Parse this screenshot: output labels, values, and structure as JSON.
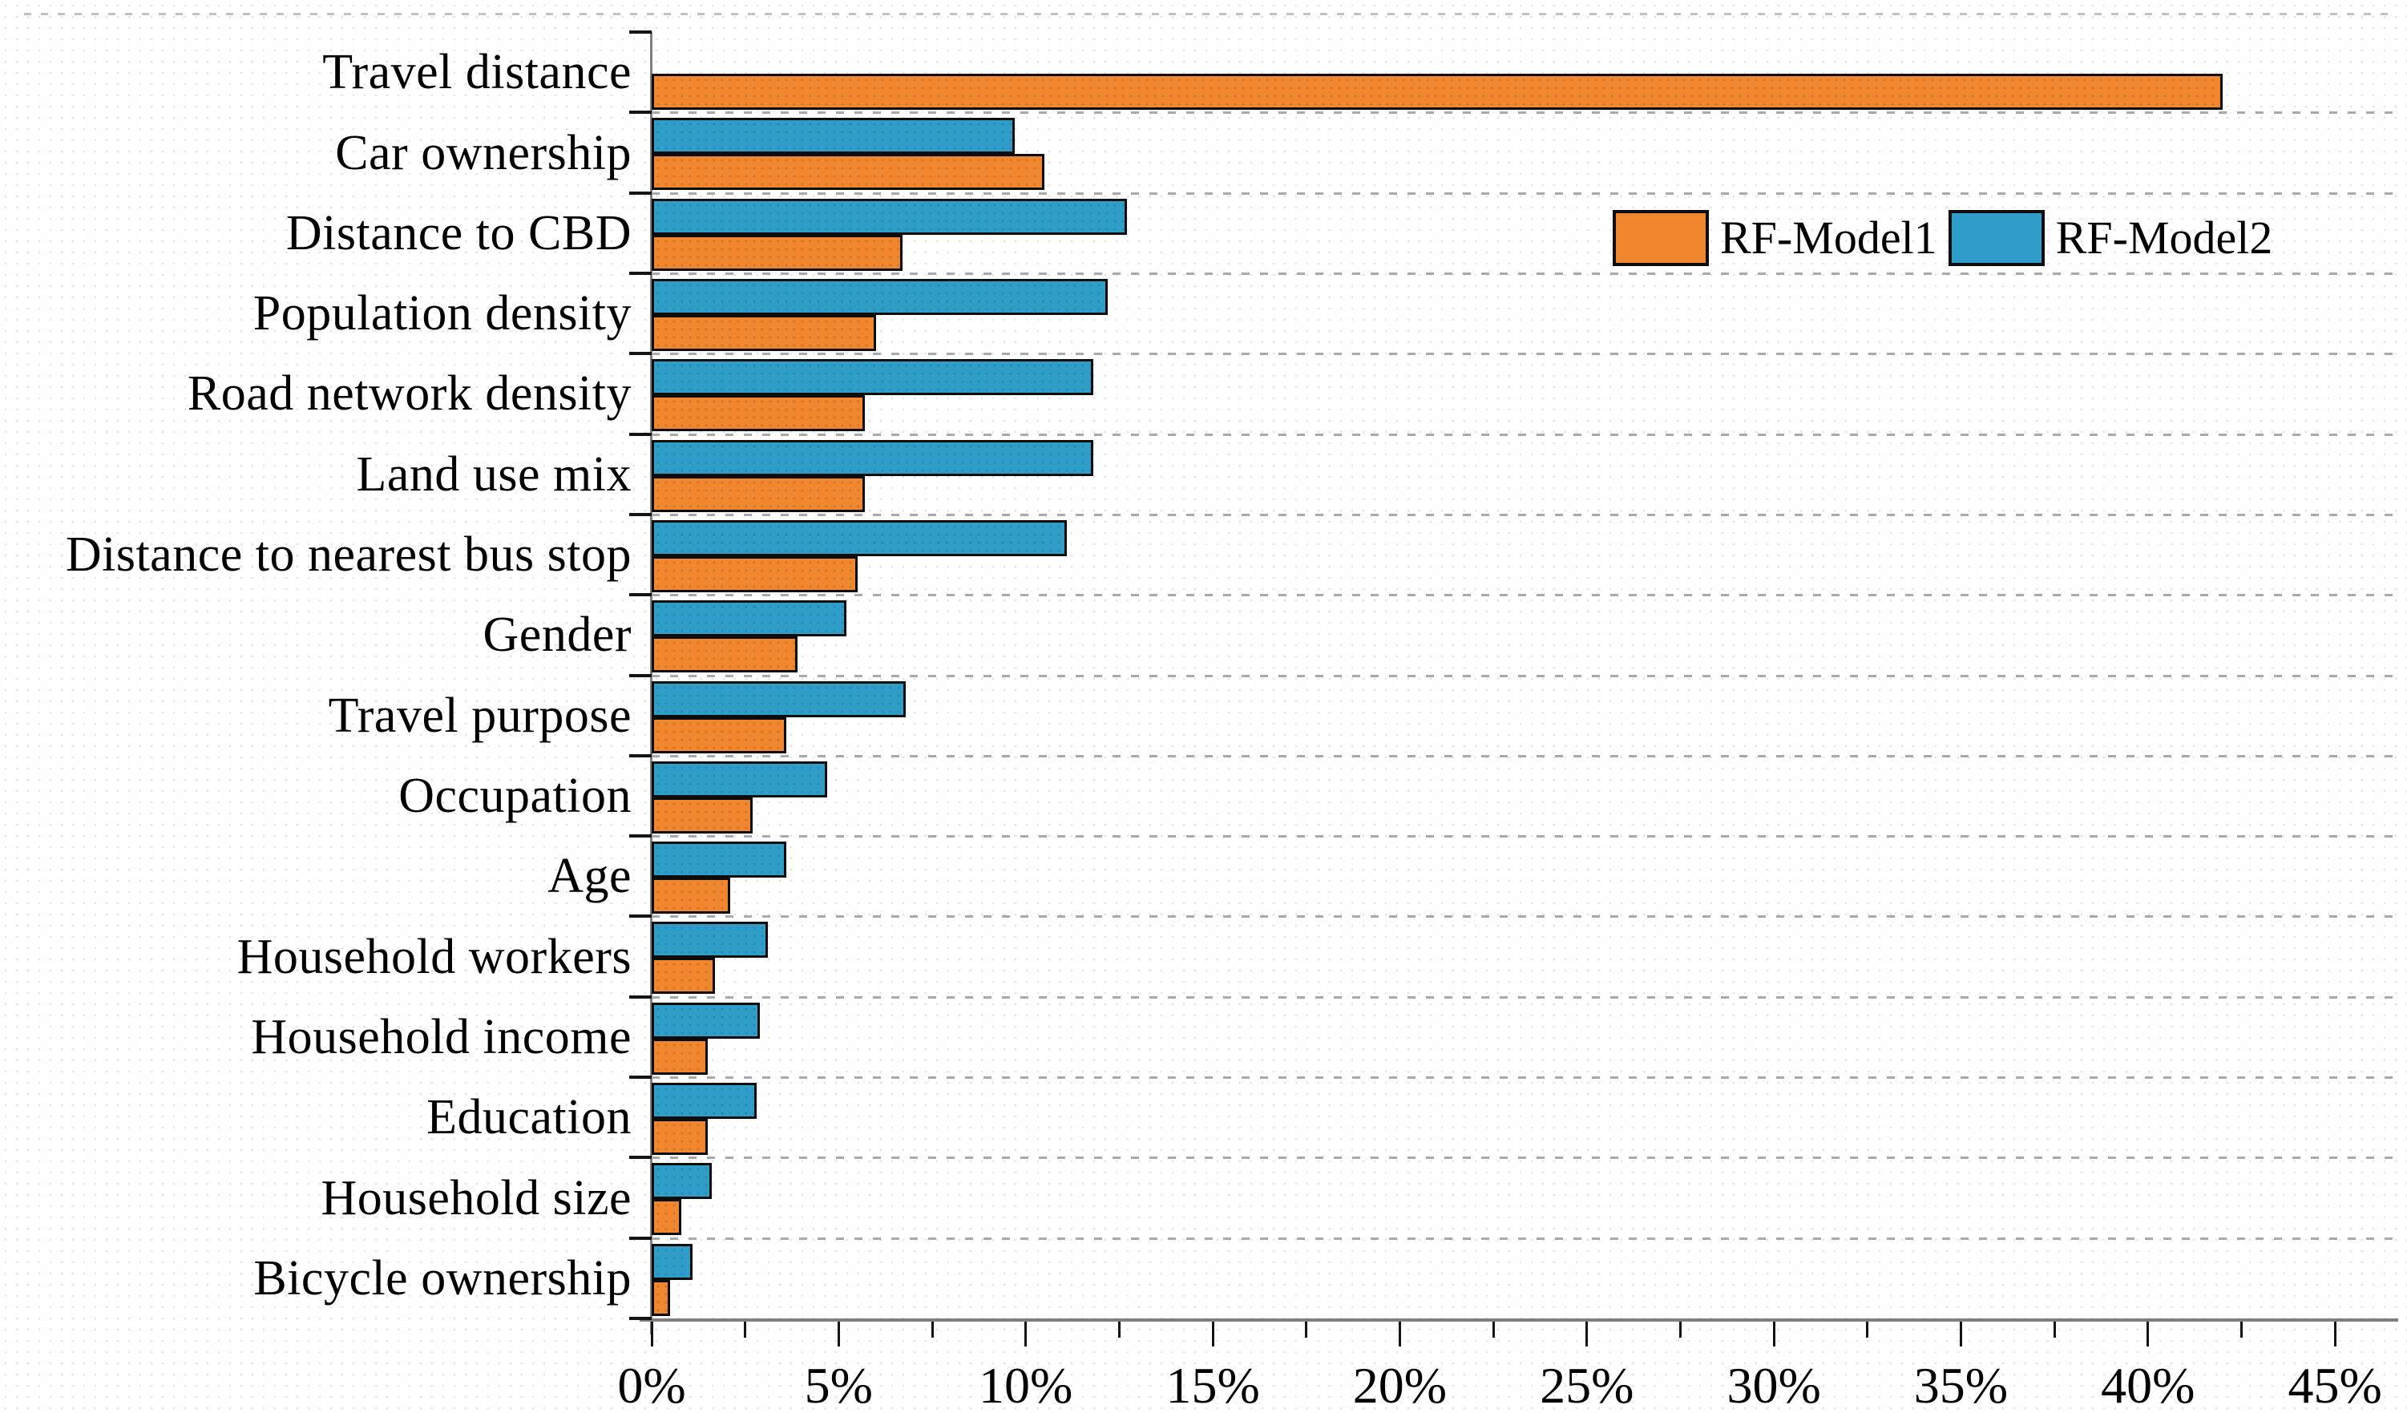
{
  "figure": {
    "background_color": "#ffffff",
    "axis_color": "#7f7f7f",
    "tick_color": "#141414",
    "gridline_color": "#a9a9a9",
    "text_color": "#000000"
  },
  "legend": {
    "position": "upper-right",
    "items": [
      {
        "label": "RF-Model1",
        "color": "#F0862E"
      },
      {
        "label": "RF-Model2",
        "color": "#2E9EC9"
      }
    ]
  },
  "chart_data": {
    "type": "bar",
    "orientation": "horizontal",
    "title": "",
    "xlabel": "",
    "ylabel": "",
    "unit": "%",
    "xlim": [
      0,
      46.5
    ],
    "x_tick_step": 5,
    "x_minor_tick_step": 2.5,
    "x_tick_labels": [
      "0%",
      "5%",
      "10%",
      "15%",
      "20%",
      "25%",
      "30%",
      "35%",
      "40%",
      "45%"
    ],
    "grid": "horizontal-dashed",
    "categories": [
      "Travel distance",
      "Car ownership",
      "Distance to CBD",
      "Population density",
      "Road network density",
      "Land use mix",
      "Distance to nearest bus stop",
      "Gender",
      "Travel purpose",
      "Occupation",
      "Age",
      "Household workers",
      "Household income",
      "Education",
      "Household size",
      "Bicycle ownership"
    ],
    "series": [
      {
        "name": "RF-Model1",
        "color": "#F0862E",
        "values": [
          42.0,
          10.5,
          6.7,
          6.0,
          5.7,
          5.7,
          5.5,
          3.9,
          3.6,
          2.7,
          2.1,
          1.7,
          1.5,
          1.5,
          0.8,
          0.5
        ]
      },
      {
        "name": "RF-Model2",
        "color": "#2E9EC9",
        "values": [
          0,
          9.7,
          12.7,
          12.2,
          11.8,
          11.8,
          11.1,
          5.2,
          6.8,
          4.7,
          3.6,
          3.1,
          2.9,
          2.8,
          1.6,
          1.1
        ]
      }
    ]
  }
}
